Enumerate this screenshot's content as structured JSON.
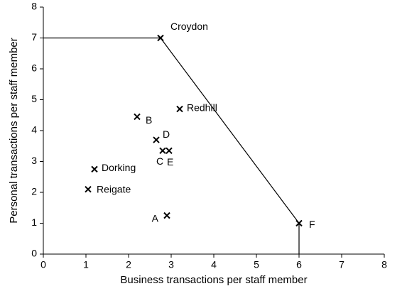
{
  "chart_data": {
    "type": "scatter",
    "x_label": "Business transactions per staff member",
    "y_label": "Personal transactions per staff member",
    "categories": [
      "Croydon",
      "Redhill",
      "B",
      "D",
      "C",
      "E",
      "Dorking",
      "Reigate",
      "A",
      "F"
    ],
    "x": [
      2.75,
      3.2,
      2.2,
      2.65,
      2.8,
      2.95,
      1.2,
      1.05,
      2.9,
      6
    ],
    "values": [
      7,
      4.7,
      4.45,
      3.7,
      3.35,
      3.35,
      2.75,
      2.1,
      1.25,
      1
    ],
    "frontier": {
      "x": [
        0,
        2.75,
        6,
        6
      ],
      "values": [
        7,
        7,
        1,
        0
      ]
    },
    "color": "#000000",
    "xlim": [
      0,
      8
    ],
    "ylim": [
      0,
      8
    ],
    "xticks": [
      0,
      1,
      2,
      3,
      4,
      5,
      6,
      7,
      8
    ],
    "yticks": [
      0,
      1,
      2,
      3,
      4,
      5,
      6,
      7,
      8
    ],
    "grid": false
  }
}
